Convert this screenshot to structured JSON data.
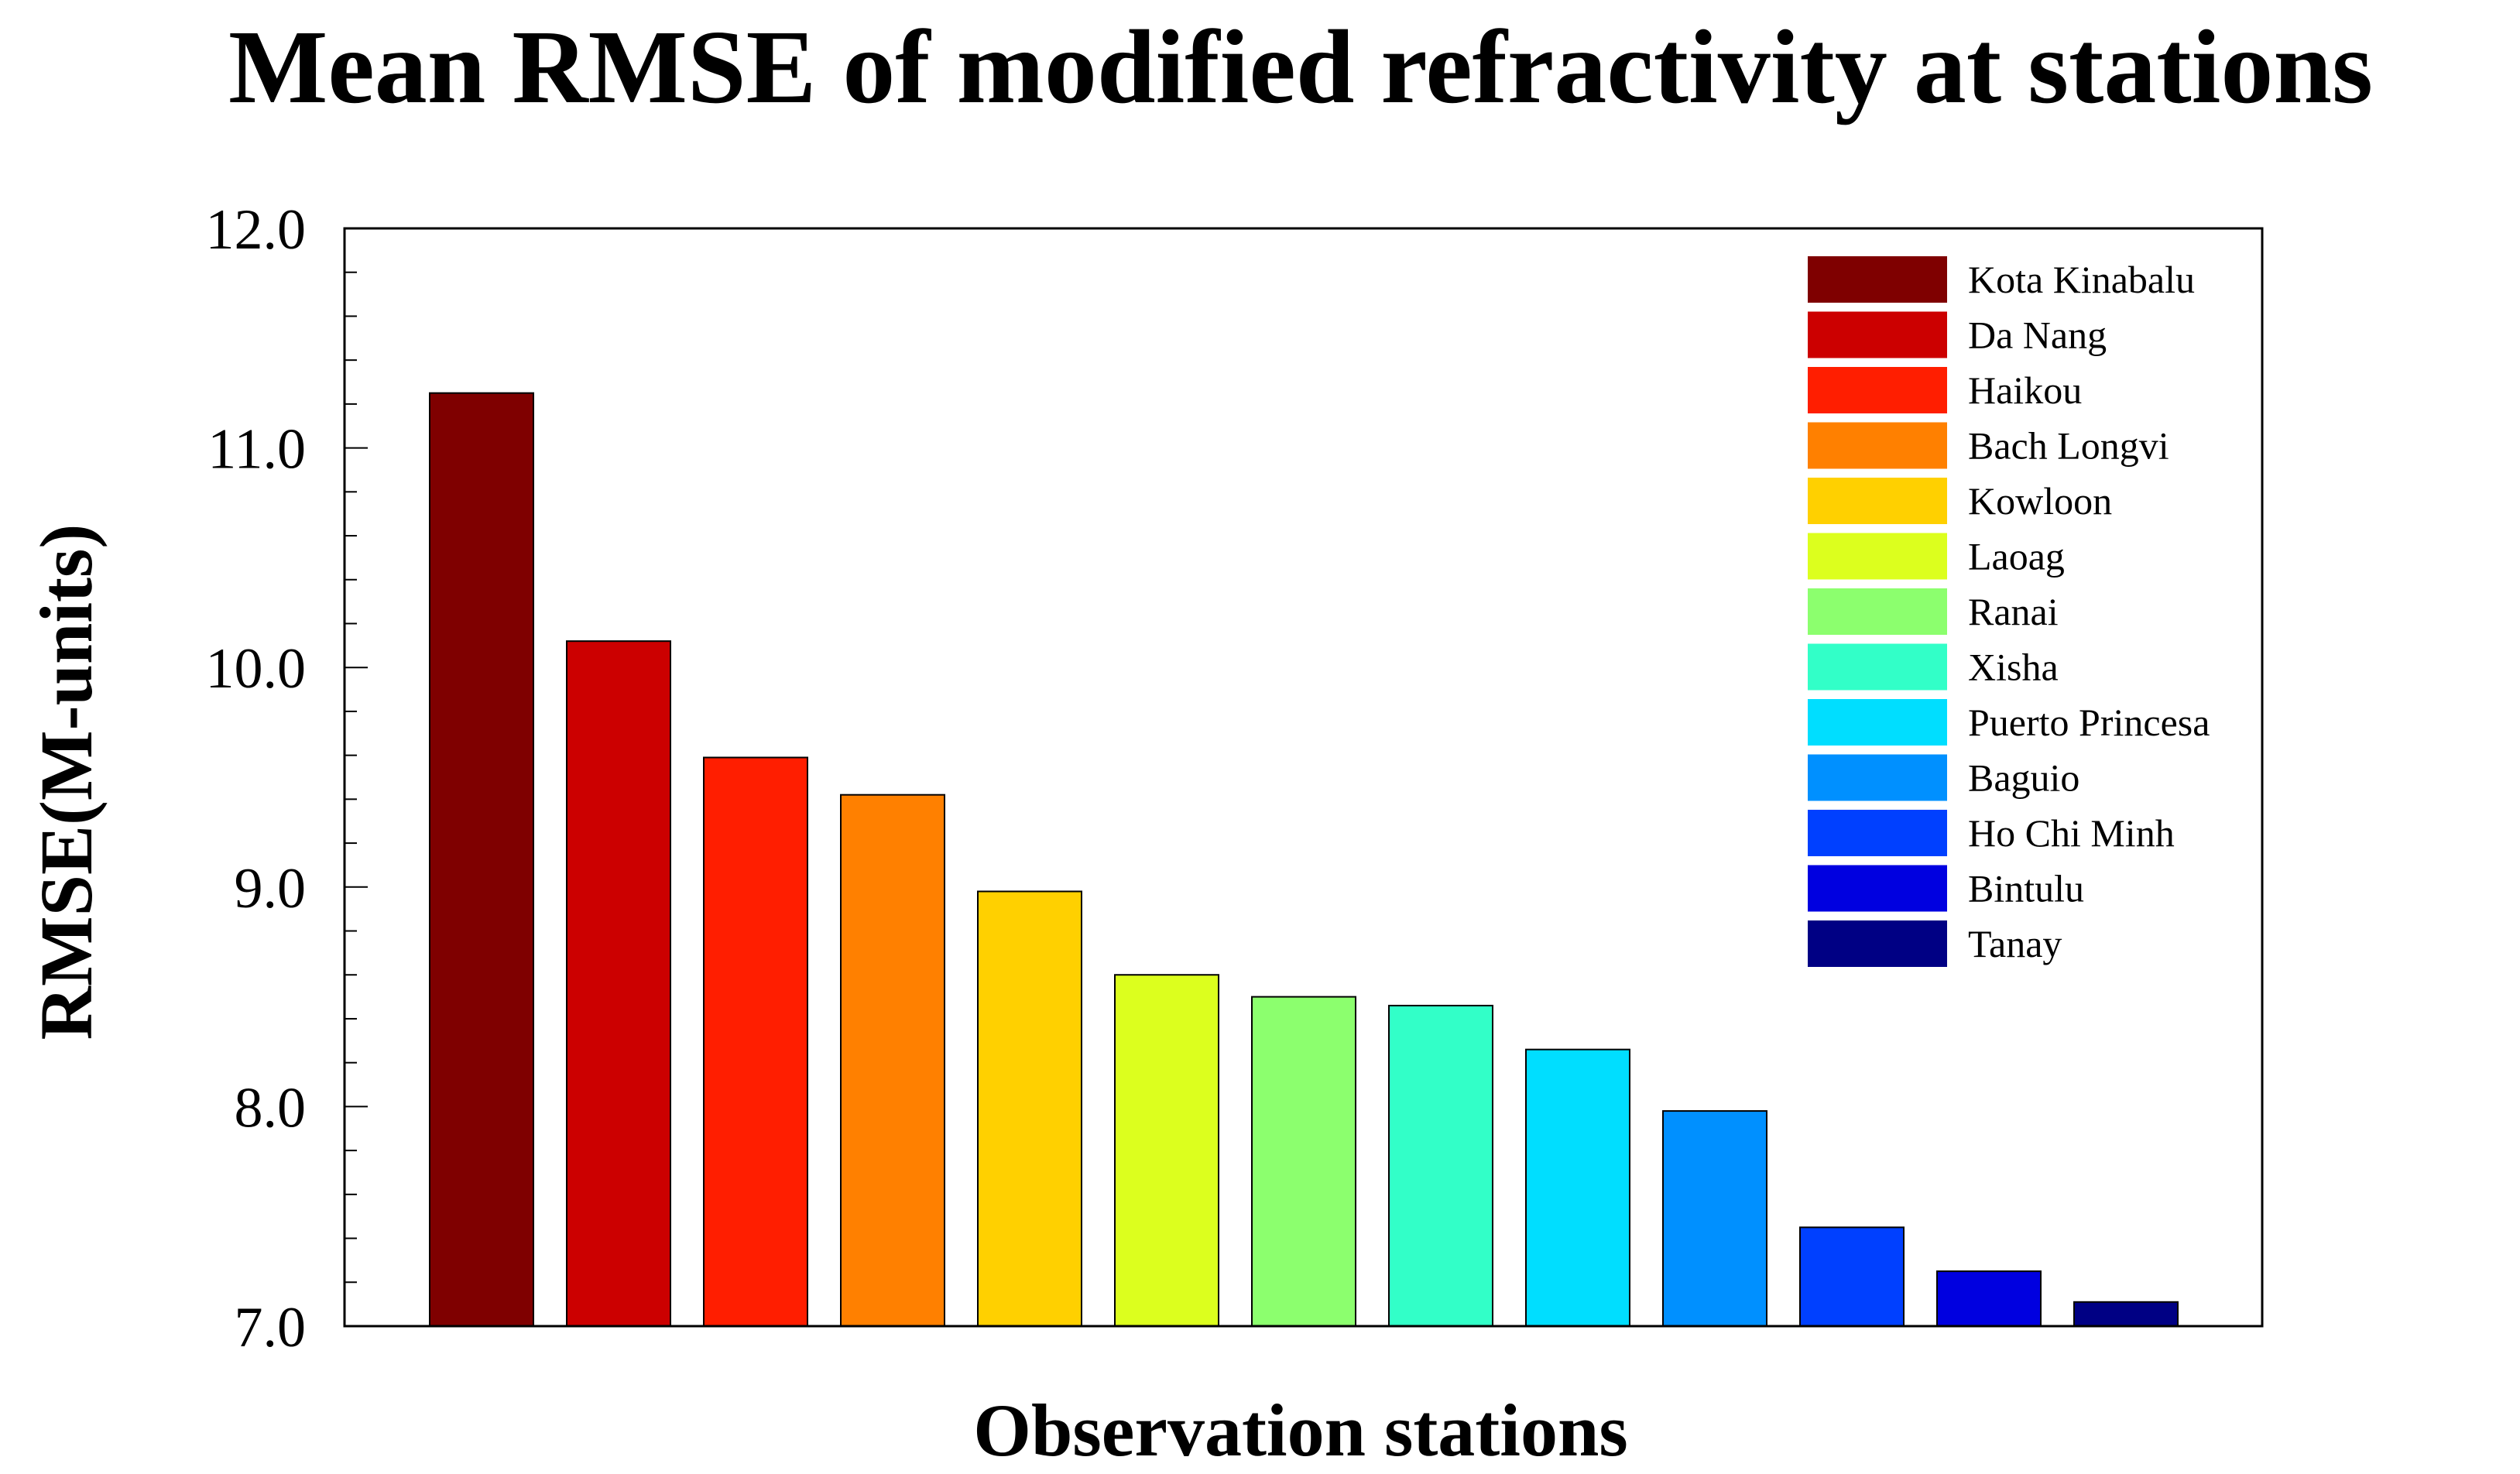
{
  "chart_data": {
    "type": "bar",
    "title": "Mean RMSE of modified refractivity at stations",
    "xlabel": "Observation stations",
    "ylabel": "RMSE(M-units)",
    "ylim": [
      7.0,
      12.0
    ],
    "yticks": [
      "7.0",
      "8.0",
      "9.0",
      "10.0",
      "11.0",
      "12.0"
    ],
    "minor_tick_step": 0.2,
    "grid": false,
    "legend_position": "top-right",
    "categories": [
      "Kota Kinabalu",
      "Da Nang",
      "Haikou",
      "Bach Longvi",
      "Kowloon",
      "Laoag",
      "Ranai",
      "Xisha",
      "Puerto Princesa",
      "Baguio",
      "Ho Chi Minh",
      "Bintulu",
      "Tanay"
    ],
    "values": [
      11.25,
      10.12,
      9.59,
      9.42,
      8.98,
      8.6,
      8.5,
      8.46,
      8.26,
      7.98,
      7.45,
      7.25,
      7.11
    ],
    "colors": [
      "#7f0000",
      "#cc0000",
      "#ff1e00",
      "#ff8000",
      "#ffd000",
      "#dcff1e",
      "#8cff6e",
      "#32ffc8",
      "#00deff",
      "#0090ff",
      "#0040ff",
      "#0000e0",
      "#000084"
    ]
  }
}
